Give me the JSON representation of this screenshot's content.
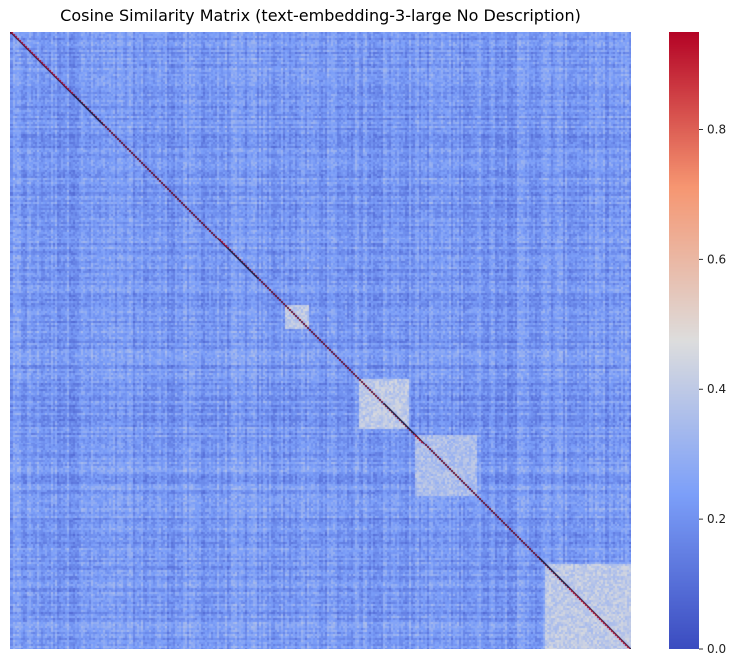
{
  "chart_data": {
    "type": "heatmap",
    "title": "Cosine Similarity Matrix (text-embedding-3-large No Description)",
    "xlabel": "",
    "ylabel": "",
    "colormap": "coolwarm",
    "vmin": 0.0,
    "vmax": 0.95,
    "colorbar_ticks": [
      0.0,
      0.2,
      0.4,
      0.6,
      0.8
    ],
    "colorbar_tick_labels": [
      "0.0",
      "0.2",
      "0.4",
      "0.6",
      "0.8"
    ],
    "diagonal_value": 1.0,
    "baseline_value": 0.22,
    "block_clusters": [
      {
        "from": 0.44,
        "to": 0.48,
        "value": 0.4
      },
      {
        "from": 0.56,
        "to": 0.64,
        "value": 0.4
      },
      {
        "from": 0.65,
        "to": 0.75,
        "value": 0.36
      },
      {
        "from": 0.86,
        "to": 1.0,
        "value": 0.4
      }
    ]
  }
}
